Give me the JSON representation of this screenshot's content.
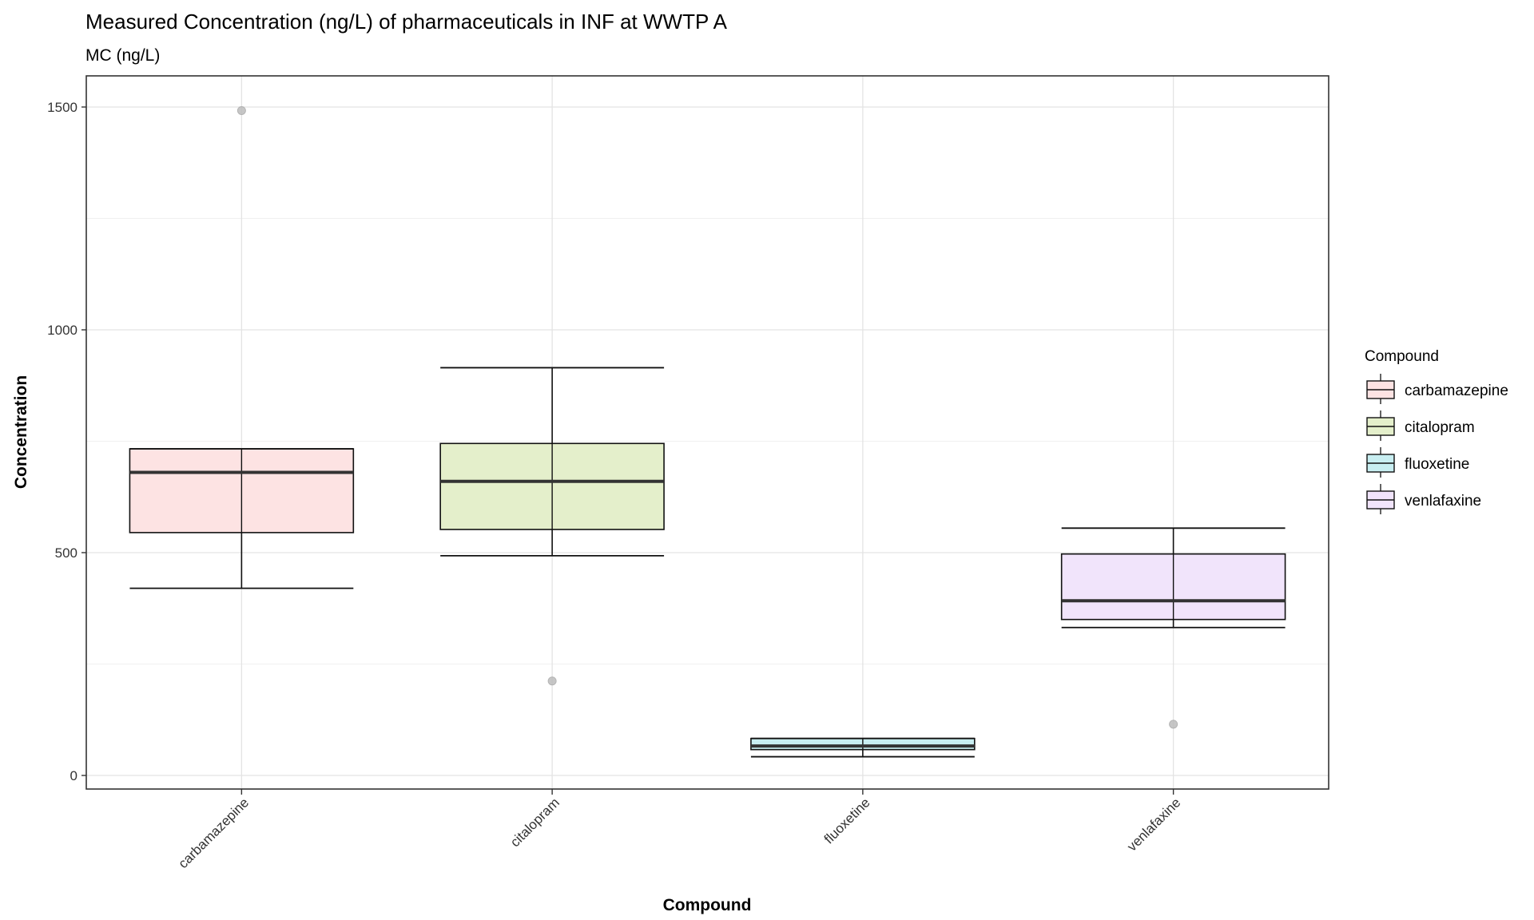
{
  "chart_data": {
    "type": "boxplot",
    "title": "Measured Concentration (ng/L) of pharmaceuticals in INF at WWTP A",
    "subtitle": "MC (ng/L)",
    "xlabel": "Compound",
    "ylabel": "Concentration",
    "ylim": [
      -30,
      1570
    ],
    "yticks": [
      0,
      500,
      1000,
      1500
    ],
    "categories": [
      "carbamazepine",
      "citalopram",
      "fluoxetine",
      "venlafaxine"
    ],
    "boxes": [
      {
        "name": "carbamazepine",
        "whisker_low": 420,
        "q1": 545,
        "median": 680,
        "q3": 733,
        "whisker_high": 733,
        "outliers": [
          1492
        ],
        "fill": "#FDE3E3"
      },
      {
        "name": "citalopram",
        "whisker_low": 493,
        "q1": 552,
        "median": 660,
        "q3": 745,
        "whisker_high": 915,
        "outliers": [
          212
        ],
        "fill": "#E4EFCB"
      },
      {
        "name": "fluoxetine",
        "whisker_low": 42,
        "q1": 58,
        "median": 66,
        "q3": 83,
        "whisker_high": 83,
        "outliers": [],
        "fill": "#C8EEF1"
      },
      {
        "name": "venlafaxine",
        "whisker_low": 332,
        "q1": 350,
        "median": 392,
        "q3": 497,
        "whisker_high": 555,
        "outliers": [
          115
        ],
        "fill": "#F1E4FB"
      }
    ],
    "grid": true,
    "legend": {
      "title": "Compound",
      "placement": "right"
    }
  }
}
